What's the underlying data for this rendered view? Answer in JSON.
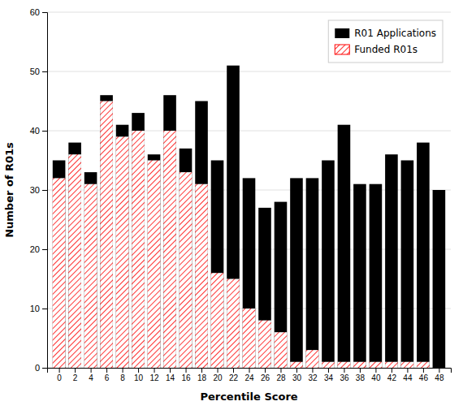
{
  "chart_data": {
    "type": "bar",
    "xlabel": "Percentile Score",
    "ylabel": "Number of R01s",
    "x": [
      0,
      2,
      4,
      6,
      8,
      10,
      12,
      14,
      16,
      18,
      20,
      22,
      24,
      26,
      28,
      30,
      32,
      34,
      36,
      38,
      40,
      42,
      44,
      46,
      48
    ],
    "series": [
      {
        "name": "R01 Applications",
        "color": "#000000",
        "values": [
          35,
          38,
          33,
          46,
          41,
          43,
          36,
          46,
          37,
          45,
          35,
          51,
          32,
          27,
          28,
          32,
          32,
          35,
          41,
          31,
          31,
          36,
          35,
          38,
          30
        ]
      },
      {
        "name": "Funded R01s",
        "color": "#ff0000",
        "values": [
          32,
          36,
          31,
          45,
          39,
          40,
          35,
          40,
          33,
          31,
          16,
          15,
          10,
          8,
          6,
          1,
          3,
          1,
          1,
          1,
          1,
          1,
          1,
          1,
          0
        ]
      }
    ],
    "xlim": [
      -1.5,
      49.5
    ],
    "xticks": [
      0,
      2,
      4,
      6,
      8,
      10,
      12,
      14,
      16,
      18,
      20,
      22,
      24,
      26,
      28,
      30,
      32,
      34,
      36,
      38,
      40,
      42,
      44,
      46,
      48
    ],
    "ylim": [
      0,
      60
    ],
    "yticks": [
      0,
      10,
      20,
      30,
      40,
      50,
      60
    ],
    "grid": true,
    "legend": "upper right"
  }
}
